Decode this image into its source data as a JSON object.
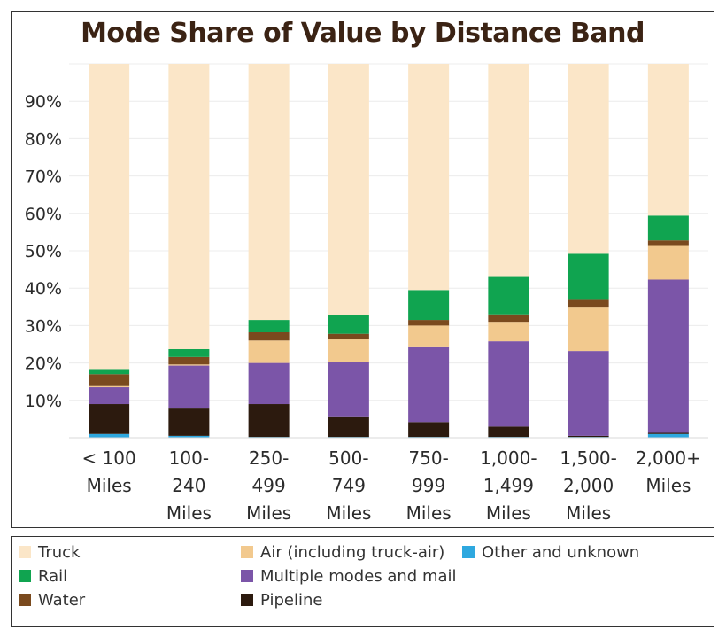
{
  "chart_data": {
    "type": "bar",
    "stacked": true,
    "title": "Mode Share of Value by Distance Band",
    "xlabel": "",
    "ylabel": "",
    "ylim": [
      0,
      100
    ],
    "y_ticks": [
      "10%",
      "20%",
      "30%",
      "40%",
      "50%",
      "60%",
      "70%",
      "80%",
      "90%"
    ],
    "y_tick_values": [
      10,
      20,
      30,
      40,
      50,
      60,
      70,
      80,
      90
    ],
    "grid": true,
    "legend_position": "bottom",
    "categories": [
      [
        "< 100",
        "Miles"
      ],
      [
        "100-",
        "240",
        "Miles"
      ],
      [
        "250-",
        "499",
        "Miles"
      ],
      [
        "500-",
        "749",
        "Miles"
      ],
      [
        "750-",
        "999",
        "Miles"
      ],
      [
        "1,000-",
        "1,499",
        "Miles"
      ],
      [
        "1,500-",
        "2,000",
        "Miles"
      ],
      [
        "2,000+",
        "Miles"
      ]
    ],
    "series": [
      {
        "name": "Other and unknown",
        "color": "#2ea8df",
        "values": [
          1.0,
          0.5,
          0.2,
          0.2,
          0.2,
          0.2,
          0.2,
          1.0
        ]
      },
      {
        "name": "Pipeline",
        "color": "#2c1a0e",
        "values": [
          8.0,
          7.3,
          8.8,
          5.3,
          4.0,
          2.8,
          0.3,
          0.3
        ]
      },
      {
        "name": "Multiple modes and mail",
        "color": "#7b55a8",
        "values": [
          4.5,
          11.5,
          11.0,
          14.8,
          20.0,
          22.8,
          22.7,
          41.0
        ]
      },
      {
        "name": "Air (including truck-air)",
        "color": "#f2c98e",
        "values": [
          0.3,
          0.3,
          6.0,
          6.0,
          5.8,
          5.2,
          11.6,
          9.0
        ]
      },
      {
        "name": "Water",
        "color": "#7a4a1e",
        "values": [
          3.2,
          2.0,
          2.2,
          1.5,
          1.5,
          2.0,
          2.3,
          1.5
        ]
      },
      {
        "name": "Rail",
        "color": "#10a450",
        "values": [
          1.4,
          2.1,
          3.3,
          5.0,
          8.0,
          10.0,
          12.1,
          6.6
        ]
      },
      {
        "name": "Truck",
        "color": "#fbe6c8",
        "values": [
          81.6,
          76.3,
          68.5,
          67.2,
          60.5,
          57.0,
          50.8,
          40.6
        ]
      }
    ]
  },
  "legend": {
    "items": [
      {
        "label": "Truck",
        "color": "#fbe6c8"
      },
      {
        "label": "Air (including truck-air)",
        "color": "#f2c98e"
      },
      {
        "label": "Other and unknown",
        "color": "#2ea8df"
      },
      {
        "label": "Rail",
        "color": "#10a450"
      },
      {
        "label": "Multiple modes and mail",
        "color": "#7b55a8"
      },
      {
        "label": "Water",
        "color": "#7a4a1e"
      },
      {
        "label": "Pipeline",
        "color": "#2c1a0e"
      }
    ]
  }
}
